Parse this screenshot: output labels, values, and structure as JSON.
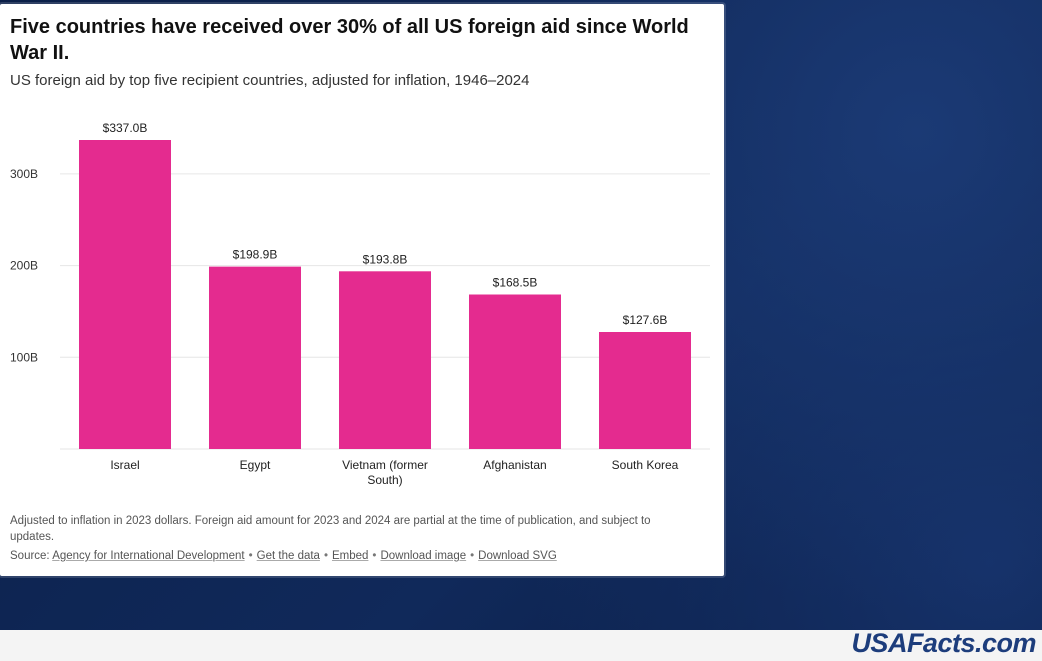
{
  "chart_data": {
    "type": "bar",
    "title": "Five countries have received over 30% of all US foreign aid since World War II.",
    "subtitle": "US foreign aid by top five recipient countries, adjusted for inflation, 1946–2024",
    "categories": [
      [
        "Israel"
      ],
      [
        "Egypt"
      ],
      [
        "Vietnam (former",
        "South)"
      ],
      [
        "Afghanistan"
      ],
      [
        "South Korea"
      ]
    ],
    "values": [
      337.0,
      198.9,
      193.8,
      168.5,
      127.6
    ],
    "value_labels": [
      "$337.0B",
      "$198.9B",
      "$193.8B",
      "$168.5B",
      "$127.6B"
    ],
    "y_ticks": [
      100,
      200,
      300
    ],
    "y_tick_labels": [
      "100B",
      "200B",
      "300B"
    ],
    "ylim": [
      0,
      337.0
    ],
    "xlabel": "",
    "ylabel": "",
    "grid": true,
    "colors": {
      "bar": "#e42b8f",
      "grid": "#e6e6e6"
    }
  },
  "footnote": {
    "note": "Adjusted to inflation in 2023 dollars. Foreign aid amount for 2023 and 2024 are partial at the time of publication, and subject to updates.",
    "source_prefix": "Source:",
    "links": [
      "Agency for International Development",
      "Get the data",
      "Embed",
      "Download image",
      "Download SVG"
    ]
  },
  "brand": "USAFacts.com"
}
